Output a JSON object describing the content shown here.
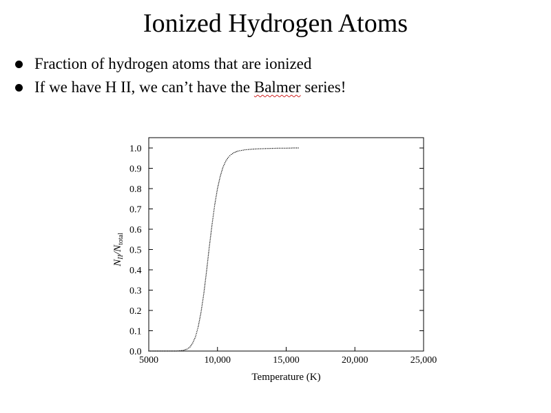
{
  "slide": {
    "title": "Ionized Hydrogen Atoms",
    "bullets": [
      {
        "text": "Fraction of hydrogen atoms that are ionized"
      },
      {
        "before": "If we have H II, we can’t have the ",
        "misspelled": "Balmer",
        "after": " series!"
      }
    ]
  },
  "chart_data": {
    "type": "line",
    "title": "",
    "xlabel": "Temperature (K)",
    "ylabel_main": "N",
    "ylabel_sub1": "II",
    "ylabel_mid": "/N",
    "ylabel_sub2": "total",
    "xlim": [
      5000,
      25000
    ],
    "ylim": [
      0.0,
      1.0
    ],
    "xticks": [
      5000,
      10000,
      15000,
      20000,
      25000
    ],
    "xtick_labels": [
      "5000",
      "10,000",
      "15,000",
      "20,000",
      "25,000"
    ],
    "yticks": [
      0.0,
      0.1,
      0.2,
      0.3,
      0.4,
      0.5,
      0.6,
      0.7,
      0.8,
      0.9,
      1.0
    ],
    "ytick_labels": [
      "0.0",
      "0.1",
      "0.2",
      "0.3",
      "0.4",
      "0.5",
      "0.6",
      "0.7",
      "0.8",
      "0.9",
      "1.0"
    ],
    "grid": false,
    "series": [
      {
        "style": "dotted",
        "x": [
          5000,
          6000,
          7000,
          7500,
          7800,
          8000,
          8200,
          8400,
          8600,
          8800,
          9000,
          9200,
          9400,
          9600,
          9800,
          10000,
          10200,
          10400,
          10600,
          10800,
          11000,
          11200,
          11500,
          12000,
          12500,
          13000,
          13500,
          14000,
          14500,
          15000,
          15500,
          16000
        ],
        "y": [
          0.0,
          0.0,
          0.0,
          0.003,
          0.01,
          0.02,
          0.04,
          0.07,
          0.12,
          0.19,
          0.28,
          0.39,
          0.51,
          0.62,
          0.72,
          0.8,
          0.86,
          0.905,
          0.935,
          0.955,
          0.968,
          0.977,
          0.985,
          0.991,
          0.994,
          0.996,
          0.997,
          0.998,
          0.999,
          0.999,
          1.0,
          1.0
        ]
      }
    ]
  }
}
